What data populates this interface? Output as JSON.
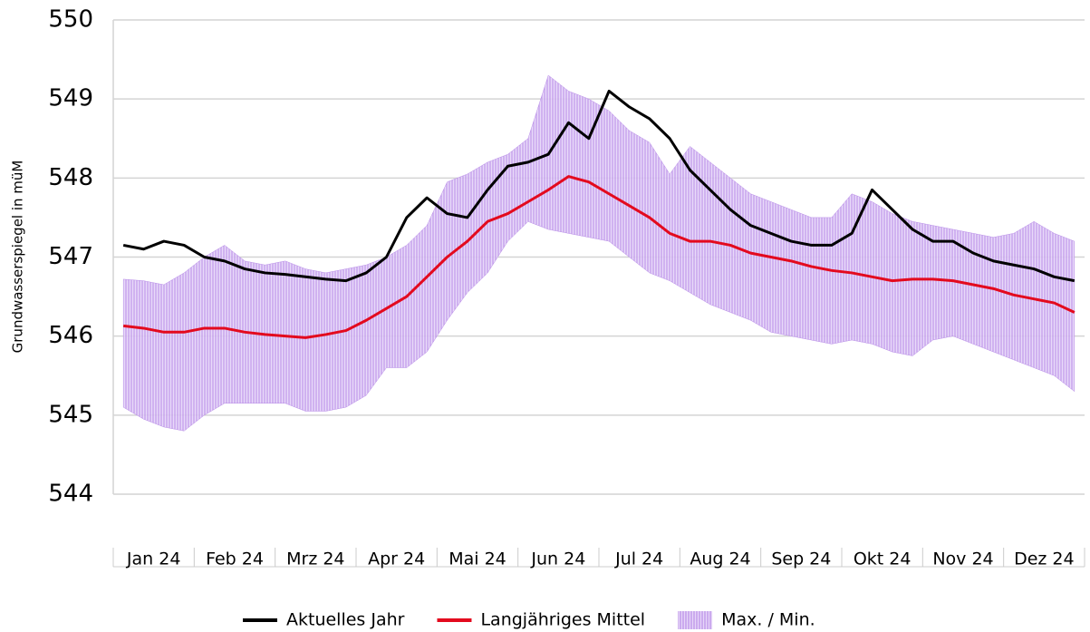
{
  "chart_data": {
    "type": "line",
    "y_label": "Grundwasserspiegel in müM",
    "categories": [
      "Jan 24",
      "Feb 24",
      "Mrz 24",
      "Apr 24",
      "Mai 24",
      "Jun 24",
      "Jul 24",
      "Aug 24",
      "Sep 24",
      "Okt 24",
      "Nov 24",
      "Dez 24"
    ],
    "ylim": [
      544,
      550
    ],
    "yticks": [
      544,
      545,
      546,
      547,
      548,
      549,
      550
    ],
    "grid": true,
    "band": {
      "name": "Max. / Min.",
      "color": "#b98ee8",
      "upper": [
        [
          546.72,
          546.7,
          546.65,
          546.8
        ],
        [
          547.0,
          547.15,
          546.95,
          546.9
        ],
        [
          546.95,
          546.85,
          546.8,
          546.85
        ],
        [
          546.9,
          547.0,
          547.15,
          547.4
        ],
        [
          547.95,
          548.05,
          548.2,
          548.3
        ],
        [
          548.5,
          549.3,
          549.1,
          549.0
        ],
        [
          548.85,
          548.6,
          548.45,
          548.05
        ],
        [
          548.4,
          548.2,
          548.0,
          547.8
        ],
        [
          547.7,
          547.6,
          547.5,
          547.5
        ],
        [
          547.8,
          547.7,
          547.55,
          547.45
        ],
        [
          547.4,
          547.35,
          547.3,
          547.25
        ],
        [
          547.3,
          547.45,
          547.3,
          547.2
        ]
      ],
      "lower": [
        [
          545.1,
          544.95,
          544.85,
          544.8
        ],
        [
          545.0,
          545.15,
          545.15,
          545.15
        ],
        [
          545.15,
          545.05,
          545.05,
          545.1
        ],
        [
          545.25,
          545.6,
          545.6,
          545.8
        ],
        [
          546.2,
          546.55,
          546.8,
          547.2
        ],
        [
          547.45,
          547.35,
          547.3,
          547.25
        ],
        [
          547.2,
          547.0,
          546.8,
          546.7
        ],
        [
          546.55,
          546.4,
          546.3,
          546.2
        ],
        [
          546.05,
          546.0,
          545.95,
          545.9
        ],
        [
          545.95,
          545.9,
          545.8,
          545.75
        ],
        [
          545.95,
          546.0,
          545.9,
          545.8
        ],
        [
          545.7,
          545.6,
          545.5,
          545.3
        ]
      ]
    },
    "series": [
      {
        "name": "Aktuelles Jahr",
        "color": "#000000",
        "values": [
          [
            547.15,
            547.1,
            547.2,
            547.15
          ],
          [
            547.0,
            546.95,
            546.85,
            546.8
          ],
          [
            546.78,
            546.75,
            546.72,
            546.7
          ],
          [
            546.8,
            547.0,
            547.5,
            547.75
          ],
          [
            547.55,
            547.5,
            547.85,
            548.15
          ],
          [
            548.2,
            548.3,
            548.7,
            548.5
          ],
          [
            549.1,
            548.9,
            548.75,
            548.5
          ],
          [
            548.1,
            547.85,
            547.6,
            547.4
          ],
          [
            547.3,
            547.2,
            547.15,
            547.15
          ],
          [
            547.3,
            547.85,
            547.6,
            547.35
          ],
          [
            547.2,
            547.2,
            547.05,
            546.95
          ],
          [
            546.9,
            546.85,
            546.75,
            546.7
          ]
        ]
      },
      {
        "name": "Langjähriges Mittel",
        "color": "#e30a1e",
        "values": [
          [
            546.13,
            546.1,
            546.05,
            546.05
          ],
          [
            546.1,
            546.1,
            546.05,
            546.02
          ],
          [
            546.0,
            545.98,
            546.02,
            546.07
          ],
          [
            546.2,
            546.35,
            546.5,
            546.75
          ],
          [
            547.0,
            547.2,
            547.45,
            547.55
          ],
          [
            547.7,
            547.85,
            548.02,
            547.95
          ],
          [
            547.8,
            547.65,
            547.5,
            547.3
          ],
          [
            547.2,
            547.2,
            547.15,
            547.05
          ],
          [
            547.0,
            546.95,
            546.88,
            546.83
          ],
          [
            546.8,
            546.75,
            546.7,
            546.72
          ],
          [
            546.72,
            546.7,
            546.65,
            546.6
          ],
          [
            546.52,
            546.47,
            546.42,
            546.3
          ]
        ]
      }
    ]
  }
}
